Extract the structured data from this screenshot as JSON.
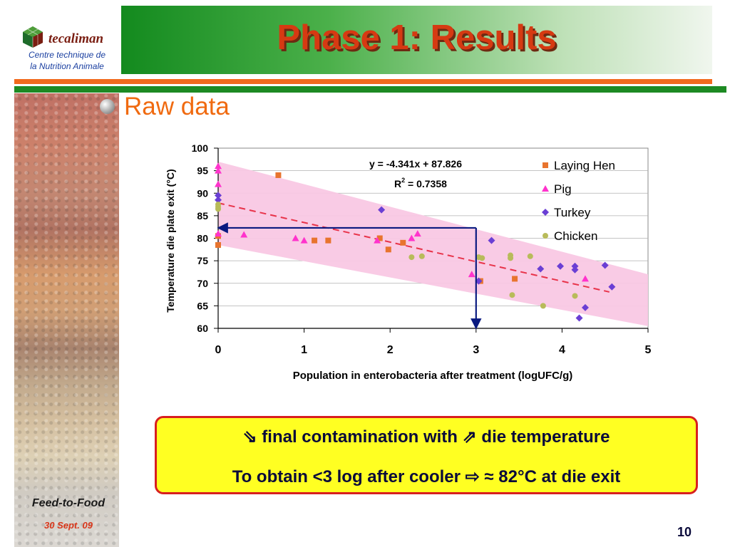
{
  "logo": {
    "wordmark": "tecaliman",
    "line1": "Centre technique de",
    "line2": "la Nutrition Animale"
  },
  "title": "Phase 1: Results",
  "section_heading": "Raw data",
  "note": {
    "line1_pre": " final contamination with ",
    "line1_post": " die temperature",
    "line2_pre": "To obtain <3 log after cooler ",
    "line2_post": " ≈ 82°C at die exit"
  },
  "footer": {
    "title": "Feed-to-Food",
    "date": "30 Sept. 09"
  },
  "slide_number": "10",
  "colors": {
    "title": "#d63a12",
    "heading": "#f06a10",
    "band": "#f9c8e4",
    "trend": "#e8334a",
    "arrow": "#0a1a80",
    "laying_hen": "#e8742e",
    "pig": "#ff33cc",
    "turkey": "#6a3fd4",
    "chicken": "#b8bb5a"
  },
  "chart_data": {
    "type": "scatter",
    "xlabel": "Population in enterobacteria after treatment (logUFC/g)",
    "ylabel": "Temperature die plate exit (°C)",
    "xlim": [
      0,
      5
    ],
    "ylim": [
      60,
      100
    ],
    "x_ticks": [
      "0",
      "1",
      "2",
      "3",
      "4",
      "5"
    ],
    "y_ticks": [
      "60",
      "65",
      "70",
      "75",
      "80",
      "85",
      "90",
      "95",
      "100"
    ],
    "legend_position": "top-right",
    "equation": "y = -4.341x + 87.826",
    "r2_label": "R",
    "r2_sup": "2",
    "r2_value": " = 0.7358",
    "trendline": {
      "slope": -4.341,
      "intercept": 87.826,
      "x_range": [
        0,
        4.55
      ]
    },
    "confidence_band": {
      "upper": [
        [
          0,
          97
        ],
        [
          5,
          72
        ]
      ],
      "lower": [
        [
          0,
          78.5
        ],
        [
          5,
          60.5
        ]
      ]
    },
    "guide_arrows": [
      {
        "from": [
          3,
          82.3
        ],
        "to": [
          0,
          82.3
        ]
      },
      {
        "from": [
          3,
          82.3
        ],
        "to": [
          3,
          60
        ]
      }
    ],
    "series": [
      {
        "name": "Laying Hen",
        "marker": "square",
        "points": [
          [
            0,
            78.5
          ],
          [
            0,
            80.5
          ],
          [
            0.7,
            94
          ],
          [
            1.12,
            79.5
          ],
          [
            1.28,
            79.5
          ],
          [
            1.88,
            80
          ],
          [
            1.98,
            77.5
          ],
          [
            2.15,
            79
          ],
          [
            3.05,
            70.5
          ],
          [
            3.45,
            71
          ]
        ]
      },
      {
        "name": "Pig",
        "marker": "triangle",
        "points": [
          [
            0,
            96
          ],
          [
            0,
            95
          ],
          [
            0,
            92
          ],
          [
            0,
            81
          ],
          [
            0.3,
            80.8
          ],
          [
            0.9,
            80
          ],
          [
            1.0,
            79.5
          ],
          [
            1.85,
            79.5
          ],
          [
            2.25,
            80
          ],
          [
            2.32,
            81
          ],
          [
            2.95,
            72
          ],
          [
            4.27,
            71
          ]
        ]
      },
      {
        "name": "Turkey",
        "marker": "diamond",
        "points": [
          [
            0,
            89.5
          ],
          [
            0,
            88.5
          ],
          [
            1.9,
            86.3
          ],
          [
            3.03,
            70.5
          ],
          [
            3.18,
            79.5
          ],
          [
            3.75,
            73.2
          ],
          [
            3.98,
            73.8
          ],
          [
            4.15,
            73.8
          ],
          [
            4.15,
            73
          ],
          [
            4.2,
            62.3
          ],
          [
            4.27,
            64.6
          ],
          [
            4.5,
            74
          ],
          [
            4.58,
            69.2
          ]
        ]
      },
      {
        "name": "Chicken",
        "marker": "circle",
        "points": [
          [
            0,
            87.5
          ],
          [
            0,
            87
          ],
          [
            0,
            86.5
          ],
          [
            2.25,
            75.8
          ],
          [
            2.37,
            76
          ],
          [
            3.03,
            75.8
          ],
          [
            3.07,
            75.6
          ],
          [
            3.4,
            76.2
          ],
          [
            3.4,
            75.6
          ],
          [
            3.42,
            67.4
          ],
          [
            3.63,
            76
          ],
          [
            3.78,
            65
          ],
          [
            4.15,
            67.2
          ]
        ]
      }
    ]
  }
}
